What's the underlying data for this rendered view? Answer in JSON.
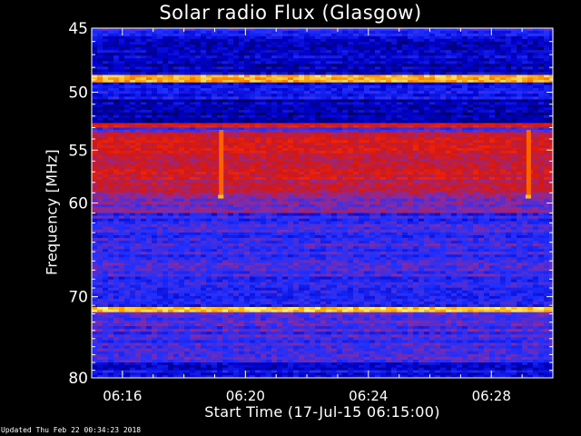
{
  "chart_data": {
    "type": "heatmap",
    "title": "Solar radio Flux (Glasgow)",
    "xlabel": "Start Time (17-Jul-15 06:15:00)",
    "ylabel": "Frequency [MHz]",
    "x_ticks": [
      "06:16",
      "06:20",
      "06:24",
      "06:28"
    ],
    "x_tick_minutes": [
      1,
      5,
      9,
      13
    ],
    "x_range_minutes": [
      0,
      15
    ],
    "y_ticks": [
      45,
      50,
      55,
      60,
      70,
      80
    ],
    "ylim": [
      80,
      45
    ],
    "y_scale": "log",
    "colormap": [
      "#00004a",
      "#0000c8",
      "#2030ff",
      "#8a2aa0",
      "#d01818",
      "#ff2a00",
      "#ffa000",
      "#ffff9a"
    ],
    "bands": [
      {
        "f0": 45.0,
        "f1": 45.6,
        "level": 0.3
      },
      {
        "f0": 45.6,
        "f1": 48.6,
        "level": 0.14
      },
      {
        "f0": 48.6,
        "f1": 49.2,
        "level": 0.92
      },
      {
        "f0": 49.2,
        "f1": 50.6,
        "level": 0.22
      },
      {
        "f0": 50.6,
        "f1": 52.6,
        "level": 0.1
      },
      {
        "f0": 52.6,
        "f1": 53.0,
        "level": 0.62
      },
      {
        "f0": 53.0,
        "f1": 53.4,
        "level": 0.35
      },
      {
        "f0": 53.4,
        "f1": 57.0,
        "level": 0.58
      },
      {
        "f0": 57.0,
        "f1": 59.0,
        "level": 0.55
      },
      {
        "f0": 59.0,
        "f1": 61.0,
        "level": 0.42
      },
      {
        "f0": 61.0,
        "f1": 71.2,
        "level": 0.3
      },
      {
        "f0": 71.2,
        "f1": 71.8,
        "level": 0.9
      },
      {
        "f0": 71.8,
        "f1": 78.0,
        "level": 0.32
      },
      {
        "f0": 78.0,
        "f1": 80.0,
        "level": 0.2
      }
    ],
    "bursts_minutes": [
      4.2,
      14.2
    ],
    "footer": "Updated Thu Feb 22 00:34:23 2018"
  }
}
